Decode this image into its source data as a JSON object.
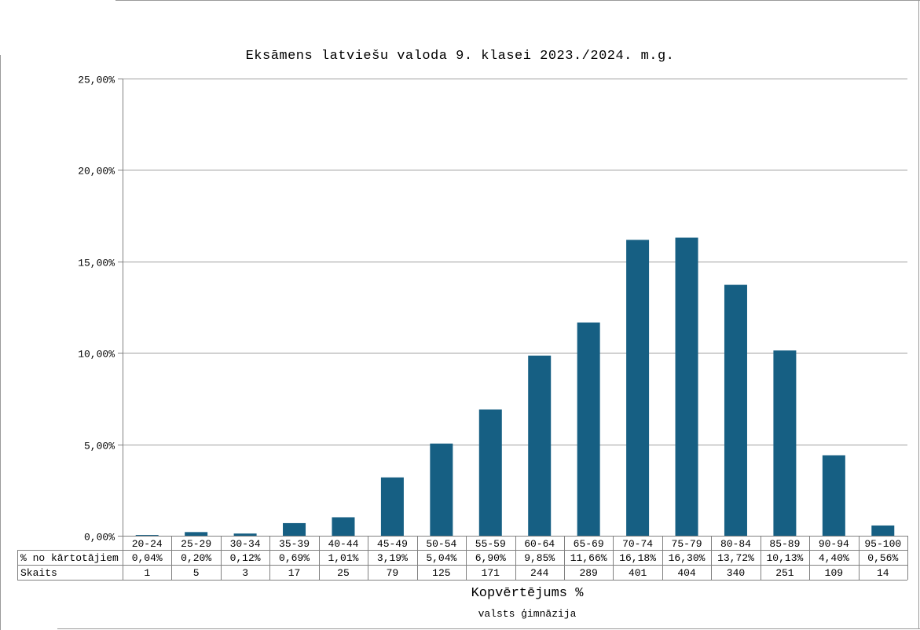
{
  "chart_data": {
    "type": "bar",
    "title": "Eksāmens latviešu valoda 9. klasei 2023./2024. m.g.",
    "xlabel": "Kopvērtējums %",
    "subtitle": "valsts ģimnāzija",
    "categories": [
      "20-24",
      "25-29",
      "30-34",
      "35-39",
      "40-44",
      "45-49",
      "50-54",
      "55-59",
      "60-64",
      "65-69",
      "70-74",
      "75-79",
      "80-84",
      "85-89",
      "90-94",
      "95-100"
    ],
    "values": [
      0.04,
      0.2,
      0.12,
      0.69,
      1.01,
      3.19,
      5.04,
      6.9,
      9.85,
      11.66,
      16.18,
      16.3,
      13.72,
      10.13,
      4.4,
      0.56
    ],
    "ylim": [
      0,
      25
    ],
    "yticks": [
      0,
      5,
      10,
      15,
      20,
      25
    ],
    "ytick_labels": [
      "0,00%",
      "5,00%",
      "10,00%",
      "15,00%",
      "20,00%",
      "25,00%"
    ],
    "grid": true,
    "bar_color": "#165f83",
    "table": {
      "rows": [
        {
          "label": "% no kārtotājiem",
          "cells": [
            "0,04%",
            "0,20%",
            "0,12%",
            "0,69%",
            "1,01%",
            "3,19%",
            "5,04%",
            "6,90%",
            "9,85%",
            "11,66%",
            "16,18%",
            "16,30%",
            "13,72%",
            "10,13%",
            "4,40%",
            "0,56%"
          ]
        },
        {
          "label": "Skaits",
          "cells": [
            "1",
            "5",
            "3",
            "17",
            "25",
            "79",
            "125",
            "171",
            "244",
            "289",
            "401",
            "404",
            "340",
            "251",
            "109",
            "14"
          ]
        }
      ]
    }
  }
}
